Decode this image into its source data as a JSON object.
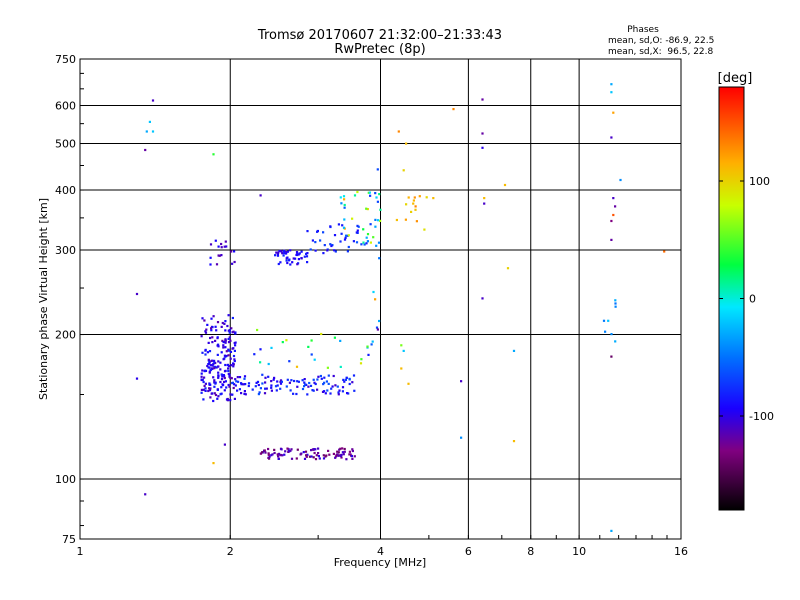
{
  "chart_data": {
    "type": "scatter",
    "title": "Tromsø 20170607 21:32:00–21:33:43",
    "subtitle": "RwPretec (8p)",
    "xlabel": "Frequency [MHz]",
    "ylabel": "Stationary phase Virtual Height [km]",
    "x_scale": "log",
    "y_scale": "log",
    "xlim": [
      1,
      16
    ],
    "ylim": [
      75,
      750
    ],
    "x_ticks": [
      {
        "value": 1,
        "label": "1"
      },
      {
        "value": 2,
        "label": "2"
      },
      {
        "value": 4,
        "label": "4"
      },
      {
        "value": 6,
        "label": "6"
      },
      {
        "value": 8,
        "label": "8"
      },
      {
        "value": 10,
        "label": "10"
      },
      {
        "value": 16,
        "label": "16"
      }
    ],
    "y_ticks": [
      {
        "value": 75,
        "label": "75"
      },
      {
        "value": 100,
        "label": "100"
      },
      {
        "value": 200,
        "label": "200"
      },
      {
        "value": 300,
        "label": "300"
      },
      {
        "value": 400,
        "label": "400"
      },
      {
        "value": 500,
        "label": "500"
      },
      {
        "value": 600,
        "label": "600"
      },
      {
        "value": 750,
        "label": "750"
      }
    ],
    "grid": true,
    "info": {
      "header": "Phases",
      "line_o": "mean, sd,O: -86.9, 22.5",
      "line_x": "mean, sd,X:  96.5, 22.8"
    },
    "colorbar": {
      "label": "[deg]",
      "range": [
        -180,
        180
      ],
      "ticks": [
        {
          "value": 100,
          "label": "100"
        },
        {
          "value": 0,
          "label": "0"
        },
        {
          "value": -100,
          "label": "-100"
        }
      ]
    },
    "clusters": [
      {
        "f": [
          1.75,
          2.05
        ],
        "h": [
          145,
          220
        ],
        "phase": [
          -120,
          -80
        ],
        "n": 170
      },
      {
        "f": [
          1.75,
          1.98
        ],
        "h": [
          155,
          175
        ],
        "phase": [
          -110,
          -85
        ],
        "n": 40
      },
      {
        "f": [
          2.0,
          3.6
        ],
        "h": [
          150,
          165
        ],
        "phase": [
          -110,
          -60
        ],
        "n": 120
      },
      {
        "f": [
          2.3,
          3.6
        ],
        "h": [
          110,
          116
        ],
        "phase": [
          -140,
          -100
        ],
        "n": 100
      },
      {
        "f": [
          2.45,
          2.85
        ],
        "h": [
          280,
          300
        ],
        "phase": [
          -110,
          -80
        ],
        "n": 45
      },
      {
        "f": [
          2.85,
          3.8
        ],
        "h": [
          295,
          340
        ],
        "phase": [
          -100,
          -60
        ],
        "n": 40
      },
      {
        "f": [
          3.3,
          4.0
        ],
        "h": [
          310,
          400
        ],
        "phase": [
          -80,
          120
        ],
        "n": 35
      },
      {
        "f": [
          1.8,
          2.05
        ],
        "h": [
          280,
          315
        ],
        "phase": [
          -120,
          -90
        ],
        "n": 18
      },
      {
        "f": [
          2.2,
          3.9
        ],
        "h": [
          170,
          205
        ],
        "phase": [
          -90,
          120
        ],
        "n": 25
      },
      {
        "f": [
          4.3,
          5.0
        ],
        "h": [
          330,
          390
        ],
        "phase": [
          90,
          130
        ],
        "n": 12
      },
      {
        "f": [
          3.85,
          4.0
        ],
        "h": [
          170,
          520
        ],
        "phase": [
          -90,
          0
        ],
        "n": 10
      },
      {
        "f": [
          11.2,
          11.9
        ],
        "h": [
          190,
          240
        ],
        "phase": [
          -60,
          -20
        ],
        "n": 8
      }
    ],
    "scattered_points": [
      {
        "x": 1.4,
        "y": 615,
        "phase": -110
      },
      {
        "x": 1.38,
        "y": 555,
        "phase": -20
      },
      {
        "x": 1.36,
        "y": 530,
        "phase": -30
      },
      {
        "x": 1.4,
        "y": 530,
        "phase": -20
      },
      {
        "x": 1.35,
        "y": 485,
        "phase": -120
      },
      {
        "x": 1.85,
        "y": 475,
        "phase": 40
      },
      {
        "x": 1.3,
        "y": 243,
        "phase": -110
      },
      {
        "x": 1.3,
        "y": 162,
        "phase": -100
      },
      {
        "x": 1.35,
        "y": 93,
        "phase": -110
      },
      {
        "x": 1.85,
        "y": 108,
        "phase": 110
      },
      {
        "x": 1.95,
        "y": 118,
        "phase": -110
      },
      {
        "x": 2.3,
        "y": 390,
        "phase": -110
      },
      {
        "x": 4.35,
        "y": 530,
        "phase": 130
      },
      {
        "x": 4.5,
        "y": 500,
        "phase": 110
      },
      {
        "x": 4.45,
        "y": 440,
        "phase": 100
      },
      {
        "x": 5.6,
        "y": 590,
        "phase": 130
      },
      {
        "x": 6.4,
        "y": 618,
        "phase": -120
      },
      {
        "x": 6.4,
        "y": 525,
        "phase": -120
      },
      {
        "x": 6.4,
        "y": 490,
        "phase": -100
      },
      {
        "x": 6.45,
        "y": 385,
        "phase": 110
      },
      {
        "x": 6.45,
        "y": 375,
        "phase": -110
      },
      {
        "x": 7.1,
        "y": 410,
        "phase": 110
      },
      {
        "x": 7.2,
        "y": 275,
        "phase": 100
      },
      {
        "x": 6.4,
        "y": 238,
        "phase": -110
      },
      {
        "x": 7.4,
        "y": 185,
        "phase": -30
      },
      {
        "x": 5.8,
        "y": 160,
        "phase": -110
      },
      {
        "x": 5.8,
        "y": 122,
        "phase": -40
      },
      {
        "x": 7.4,
        "y": 120,
        "phase": 110
      },
      {
        "x": 4.65,
        "y": 375,
        "phase": 110
      },
      {
        "x": 4.7,
        "y": 370,
        "phase": 130
      },
      {
        "x": 4.4,
        "y": 190,
        "phase": 60
      },
      {
        "x": 4.45,
        "y": 185,
        "phase": -20
      },
      {
        "x": 4.55,
        "y": 158,
        "phase": 110
      },
      {
        "x": 4.4,
        "y": 170,
        "phase": 110
      },
      {
        "x": 3.9,
        "y": 237,
        "phase": 120
      },
      {
        "x": 3.95,
        "y": 205,
        "phase": -120
      },
      {
        "x": 11.6,
        "y": 665,
        "phase": -30
      },
      {
        "x": 11.6,
        "y": 640,
        "phase": -20
      },
      {
        "x": 11.7,
        "y": 580,
        "phase": 120
      },
      {
        "x": 11.6,
        "y": 515,
        "phase": -110
      },
      {
        "x": 11.7,
        "y": 385,
        "phase": -110
      },
      {
        "x": 11.8,
        "y": 370,
        "phase": -120
      },
      {
        "x": 11.7,
        "y": 355,
        "phase": 150
      },
      {
        "x": 11.6,
        "y": 345,
        "phase": -130
      },
      {
        "x": 11.6,
        "y": 315,
        "phase": -120
      },
      {
        "x": 12.1,
        "y": 420,
        "phase": -40
      },
      {
        "x": 11.6,
        "y": 180,
        "phase": -140
      },
      {
        "x": 11.6,
        "y": 78,
        "phase": -30
      },
      {
        "x": 14.8,
        "y": 298,
        "phase": 140
      },
      {
        "x": 5.1,
        "y": 385,
        "phase": 110
      }
    ]
  }
}
